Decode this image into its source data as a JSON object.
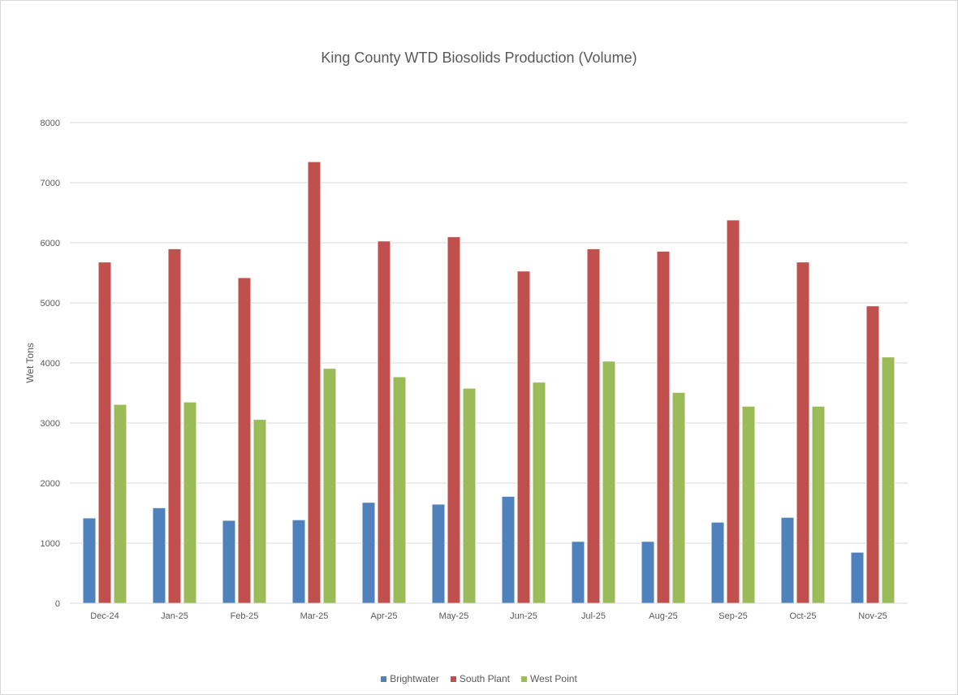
{
  "chart_data": {
    "type": "bar",
    "title": "King County WTD Biosolids Production (Volume)",
    "xlabel": "",
    "ylabel": "Wet Tons",
    "ylim": [
      0,
      8000
    ],
    "yticks": [
      0,
      1000,
      2000,
      3000,
      4000,
      5000,
      6000,
      7000,
      8000
    ],
    "grid": true,
    "legend": "bottom",
    "categories": [
      "Dec-24",
      "Jan-25",
      "Feb-25",
      "Mar-25",
      "Apr-25",
      "May-25",
      "Jun-25",
      "Jul-25",
      "Aug-25",
      "Sep-25",
      "Oct-25",
      "Nov-25"
    ],
    "series": [
      {
        "name": "Brightwater",
        "color": "#4f81bd",
        "values": [
          1420,
          1590,
          1380,
          1390,
          1680,
          1650,
          1780,
          1030,
          1030,
          1350,
          1430,
          850
        ]
      },
      {
        "name": "South Plant",
        "color": "#c0504d",
        "values": [
          5680,
          5900,
          5420,
          7350,
          6030,
          6100,
          5530,
          5900,
          5860,
          6380,
          5680,
          4950
        ]
      },
      {
        "name": "West Point",
        "color": "#9bbb59",
        "values": [
          3310,
          3350,
          3060,
          3910,
          3770,
          3580,
          3680,
          4030,
          3510,
          3280,
          3280,
          4100
        ]
      }
    ]
  }
}
